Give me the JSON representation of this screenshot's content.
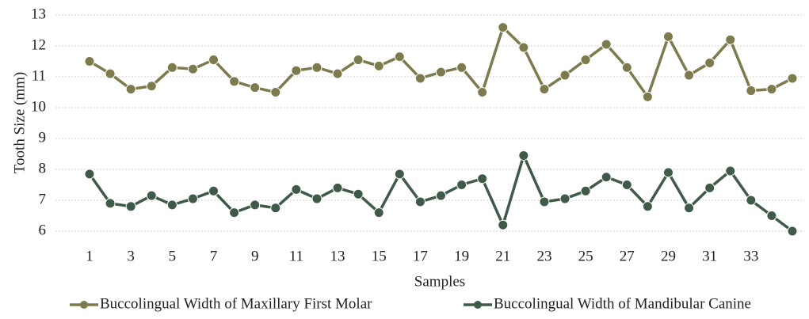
{
  "chart_data": {
    "type": "line",
    "x_label": "Samples",
    "y_label": "Tooth Size (mm)",
    "categories": [
      "1",
      null,
      "3",
      null,
      "5",
      null,
      "7",
      null,
      "9",
      null,
      "11",
      null,
      "13",
      null,
      "15",
      null,
      "17",
      null,
      "19",
      null,
      "21",
      null,
      "23",
      null,
      "25",
      null,
      "27",
      null,
      "29",
      null,
      "31",
      null,
      "33",
      null,
      null
    ],
    "series": [
      {
        "name": "Buccolingual Width of Maxillary First Molar",
        "color": "#7d7a4e",
        "values": [
          11.5,
          11.1,
          10.6,
          10.7,
          11.3,
          11.25,
          11.55,
          10.85,
          10.65,
          10.5,
          11.2,
          11.3,
          11.1,
          11.55,
          11.35,
          11.65,
          10.95,
          11.15,
          11.3,
          10.5,
          12.6,
          11.95,
          10.6,
          11.05,
          11.55,
          12.05,
          11.3,
          10.35,
          12.3,
          11.05,
          11.45,
          12.2,
          10.55,
          10.6,
          10.95
        ]
      },
      {
        "name": "Buccolingual Width of Mandibular Canine",
        "color": "#3f5a48",
        "values": [
          7.85,
          6.9,
          6.8,
          7.15,
          6.85,
          7.05,
          7.3,
          6.6,
          6.85,
          6.75,
          7.35,
          7.05,
          7.4,
          7.2,
          6.6,
          7.85,
          6.95,
          7.15,
          7.5,
          7.7,
          6.2,
          8.45,
          6.95,
          7.05,
          7.3,
          7.75,
          7.5,
          6.8,
          7.9,
          6.75,
          7.4,
          7.95,
          7.0,
          6.5,
          6.0
        ]
      }
    ],
    "ylim": [
      6,
      13
    ],
    "yticks": [
      6,
      7,
      8,
      9,
      10,
      11,
      12,
      13
    ],
    "grid": true
  }
}
